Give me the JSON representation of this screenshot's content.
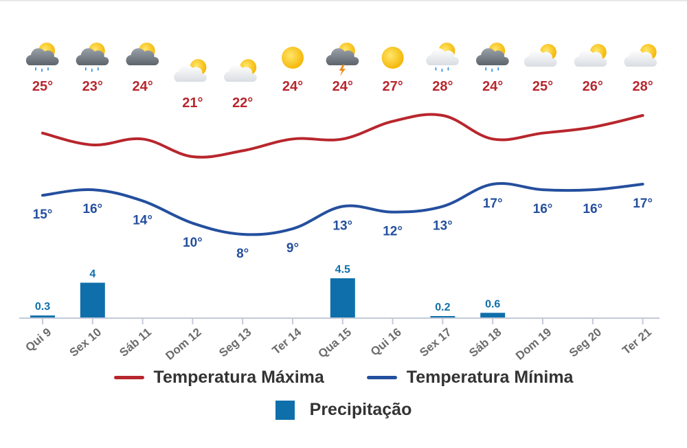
{
  "chart_data": {
    "type": "line",
    "categories": [
      "Qui 9",
      "Sex 10",
      "Sáb 11",
      "Dom 12",
      "Seg 13",
      "Ter 14",
      "Qua 15",
      "Qui 16",
      "Sex 17",
      "Sáb 18",
      "Dom 19",
      "Seg 20",
      "Ter 21"
    ],
    "weather_icons": [
      "rain-cloud-sun-icon",
      "rain-cloud-sun-icon",
      "cloud-sun-icon",
      "partly-cloudy-icon",
      "partly-cloudy-icon",
      "sun-icon",
      "storm-cloud-sun-icon",
      "sun-icon",
      "rain-light-cloud-sun-icon",
      "rain-cloud-sun-icon",
      "partly-cloudy-icon",
      "partly-cloudy-icon",
      "partly-cloudy-icon"
    ],
    "series": [
      {
        "name": "Temperatura Máxima",
        "color": "#b8262d",
        "values": [
          25,
          23,
          24,
          21,
          22,
          24,
          24,
          27,
          28,
          24,
          25,
          26,
          28
        ],
        "labels": [
          "25°",
          "23°",
          "24°",
          "21°",
          "22°",
          "24°",
          "24°",
          "27°",
          "28°",
          "24°",
          "25°",
          "26°",
          "28°"
        ]
      },
      {
        "name": "Temperatura Mínima",
        "color": "#244f9e",
        "values": [
          15,
          16,
          14,
          10,
          8,
          9,
          13,
          12,
          13,
          17,
          16,
          16,
          17
        ],
        "labels": [
          "15°",
          "16°",
          "14°",
          "10°",
          "8°",
          "9°",
          "13°",
          "12°",
          "13°",
          "17°",
          "16°",
          "16°",
          "17°"
        ]
      },
      {
        "name": "Precipitação",
        "type": "bar",
        "color": "#0f6fab",
        "values": [
          0.3,
          4,
          0,
          0,
          0,
          0,
          4.5,
          0,
          0.2,
          0.6,
          0,
          0,
          0
        ],
        "labels": [
          "0.3",
          "4",
          "",
          "",
          "",
          "",
          "4.5",
          "",
          "0.2",
          "0.6",
          "",
          "",
          ""
        ]
      }
    ],
    "legend": {
      "max": "Temperatura Máxima",
      "min": "Temperatura Mínima",
      "precip": "Precipitação"
    },
    "legend_position": "bottom",
    "grid": false
  }
}
